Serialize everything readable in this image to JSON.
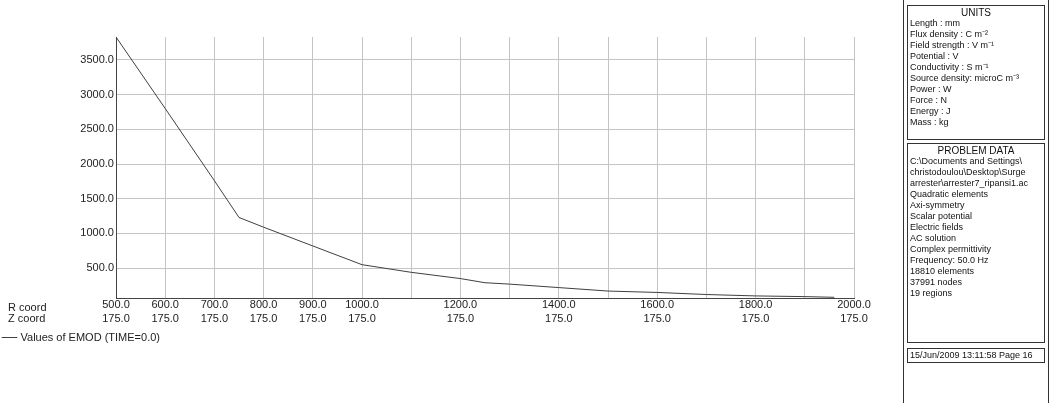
{
  "chart_data": [
    {
      "type": "line",
      "annotations": [
        "R coord",
        "Z coord",
        "175.0",
        "175.0",
        "175.0",
        "175.0",
        "175.0",
        "175.0",
        "175.0",
        "175.0",
        "175.0",
        "175.0",
        "175.0"
      ],
      "x": [
        500,
        600,
        700,
        750,
        800,
        900,
        1000,
        1100,
        1200,
        1250,
        1300,
        1400,
        1500,
        1600,
        1700,
        1800,
        1900,
        1960
      ],
      "series": [
        {
          "name": "Values of EMOD (TIME=0.0)",
          "color": "#404040",
          "values": [
            3830,
            2800,
            1760,
            1230,
            1090,
            820,
            550,
            440,
            350,
            290,
            270,
            220,
            170,
            150,
            120,
            100,
            90,
            80
          ]
        }
      ],
      "xlim": [
        500,
        2000
      ],
      "xticks": [
        {
          "value": 500,
          "label": "500.0"
        },
        {
          "value": 600,
          "label": "600.0"
        },
        {
          "value": 700,
          "label": "700.0"
        },
        {
          "value": 800,
          "label": "800.0"
        },
        {
          "value": 900,
          "label": "900.0"
        },
        {
          "value": 1000,
          "label": "1000.0"
        },
        {
          "value": 1100,
          "label": null
        },
        {
          "value": 1200,
          "label": "1200.0"
        },
        {
          "value": 1300,
          "label": null
        },
        {
          "value": 1400,
          "label": "1400.0"
        },
        {
          "value": 1500,
          "label": null
        },
        {
          "value": 1600,
          "label": "1600.0"
        },
        {
          "value": 1700,
          "label": null
        },
        {
          "value": 1800,
          "label": "1800.0"
        },
        {
          "value": 1900,
          "label": null
        },
        {
          "value": 2000,
          "label": "2000.0"
        }
      ],
      "ylim": [
        70,
        3830
      ],
      "yticks": [
        {
          "value": 500,
          "label": "500.0"
        },
        {
          "value": 1000,
          "label": "1000.0"
        },
        {
          "value": 1500,
          "label": "1500.0"
        },
        {
          "value": 2000,
          "label": "2000.0"
        },
        {
          "value": 2500,
          "label": "2500.0"
        },
        {
          "value": 3000,
          "label": "3000.0"
        },
        {
          "value": 3500,
          "label": "3500.0"
        }
      ],
      "grid": true,
      "legend": "bottom left",
      "marker": "none",
      "line_style": "solid"
    },
    {
      "type": "other",
      "title": "UNITS",
      "annotations": [
        "Length : mm",
        "Flux density : C m⁻²",
        "Field strength : V m⁻¹",
        "Potential : V",
        "Conductivity : S m⁻¹",
        "Source density: microC m⁻³",
        "Power : W",
        "Force : N",
        "Energy : J",
        "Mass : kg"
      ]
    },
    {
      "type": "other",
      "title": "PROBLEM DATA",
      "annotations": [
        "C:\\Documents and Settings\\",
        "christodoulou\\Desktop\\Surge",
        "arrester\\arrester7_ripansi1.ac",
        "Quadratic elements",
        "Axi-symmetry",
        "Scalar potential",
        "Electric fields",
        "AC solution",
        "Complex permittivity",
        "Frequency: 50.0 Hz",
        "18810 elements",
        "37991 nodes",
        "19 regions"
      ]
    },
    {
      "type": "other",
      "annotations": [
        "15/Jun/2009 13:11:58 Page 16"
      ]
    }
  ]
}
